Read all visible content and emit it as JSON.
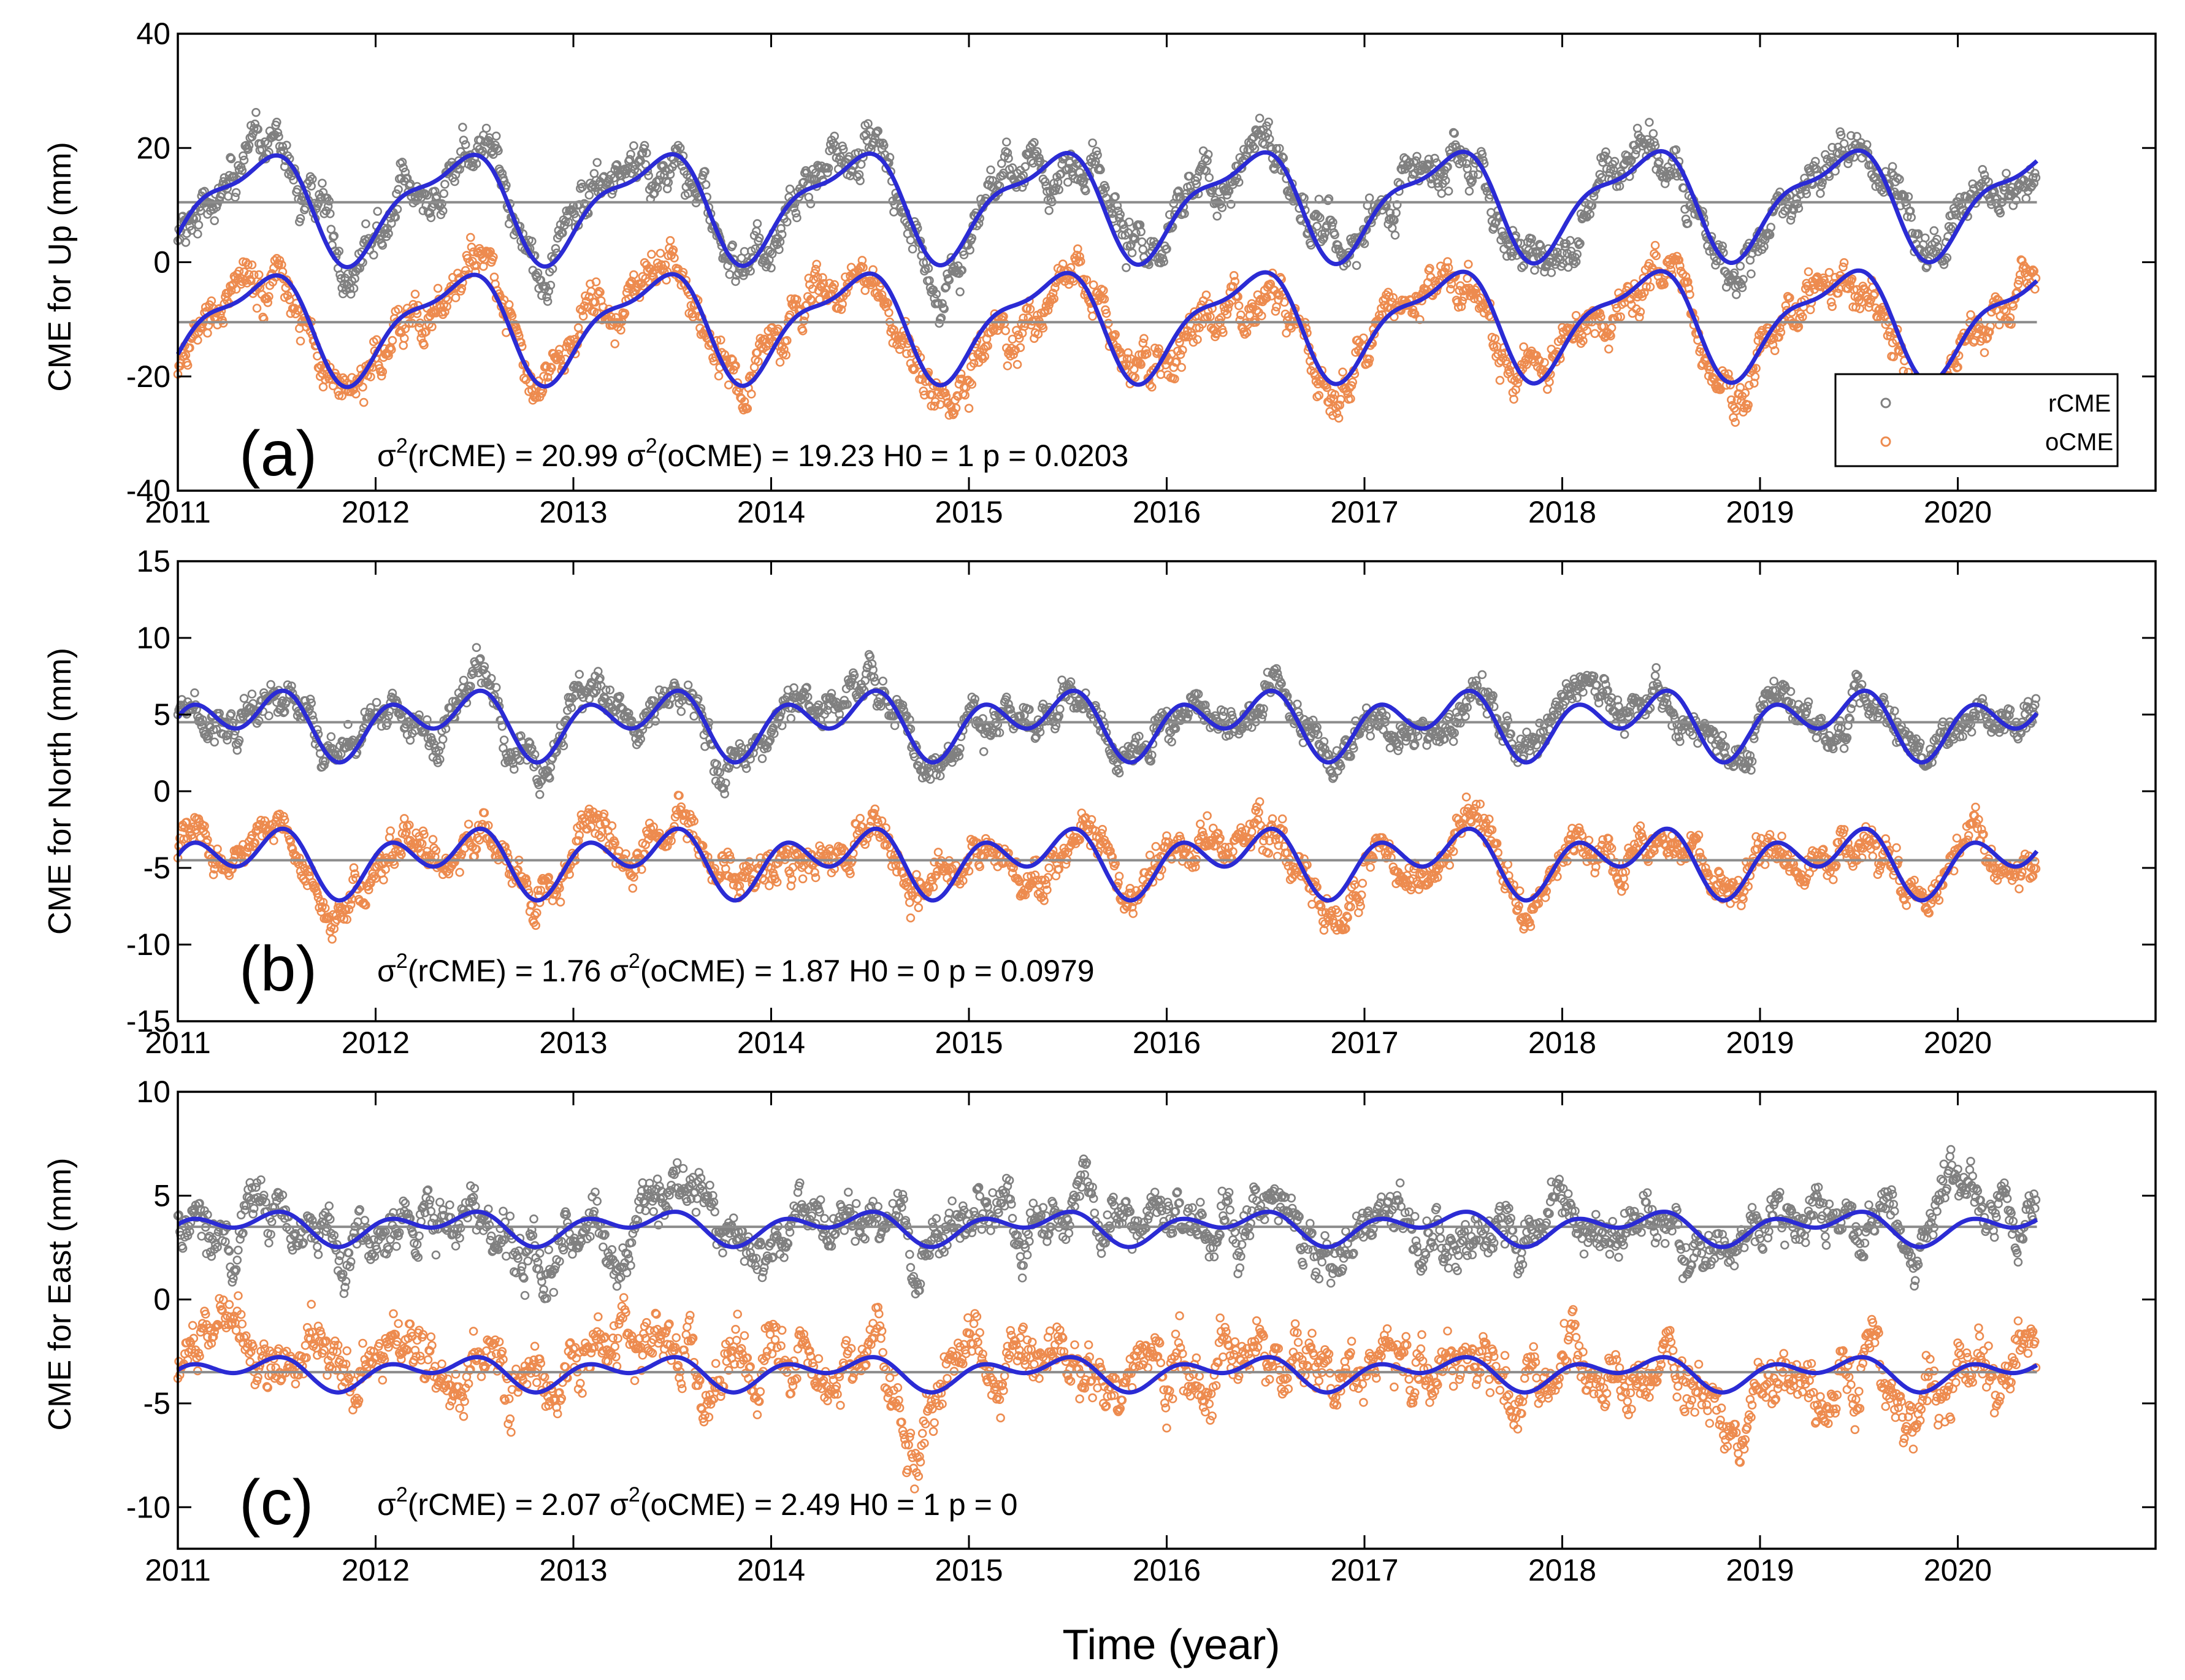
{
  "figure": {
    "xlabel": "Time (year)",
    "colors": {
      "rCME": "#808080",
      "oCME": "#ed8b4f",
      "fit": "#2b2bd4",
      "mean": "#8c8c8c",
      "axis": "#000000"
    },
    "legend": [
      {
        "label": "rCME",
        "color": "#808080"
      },
      {
        "label": "oCME",
        "color": "#ed8b4f"
      }
    ]
  },
  "chart_data": [
    {
      "type": "scatter",
      "panel": "(a)",
      "ylabel": "CME for Up (mm)",
      "xlim": [
        2011,
        2021
      ],
      "ylim": [
        -40,
        40
      ],
      "xticks": [
        2011,
        2012,
        2013,
        2014,
        2015,
        2016,
        2017,
        2018,
        2019,
        2020
      ],
      "xtick_labels": [
        "2011",
        "2012",
        "2013",
        "2014",
        "2015",
        "2016",
        "2017",
        "2018",
        "2019",
        "2020"
      ],
      "yticks": [
        -40,
        -20,
        0,
        20,
        40
      ],
      "ytick_labels": [
        "-40",
        "-20",
        "0",
        "20",
        "40"
      ],
      "x_end": 2020.4,
      "series": [
        {
          "name": "rCME",
          "mean": 10.5,
          "annual_amp": 8.5,
          "semi_amp": 3.0,
          "phase": 0.0,
          "noise": 4.0,
          "trend": 0.5
        },
        {
          "name": "oCME",
          "mean": -10.5,
          "annual_amp": 8.5,
          "semi_amp": 3.0,
          "phase": 0.0,
          "noise": 4.0,
          "trend": 0.5
        }
      ],
      "stats": {
        "var_r": "20.99",
        "var_o": "19.23",
        "h0": "1",
        "p": "0.0203"
      },
      "legend_position": "bottom-right"
    },
    {
      "type": "scatter",
      "panel": "(b)",
      "ylabel": "CME for North (mm)",
      "xlim": [
        2011,
        2021
      ],
      "ylim": [
        -15,
        15
      ],
      "xticks": [
        2011,
        2012,
        2013,
        2014,
        2015,
        2016,
        2017,
        2018,
        2019,
        2020
      ],
      "xtick_labels": [
        "2011",
        "2012",
        "2013",
        "2014",
        "2015",
        "2016",
        "2017",
        "2018",
        "2019",
        "2020"
      ],
      "yticks": [
        -15,
        -10,
        -5,
        0,
        5,
        10,
        15
      ],
      "ytick_labels": [
        "-15",
        "-10",
        "-5",
        "0",
        "5",
        "10",
        "15"
      ],
      "x_end": 2020.4,
      "series": [
        {
          "name": "rCME",
          "mean": 4.5,
          "annual_amp": 1.2,
          "semi_amp": 1.5,
          "phase": 0.6,
          "noise": 1.3,
          "trend": 0.0
        },
        {
          "name": "oCME",
          "mean": -4.5,
          "annual_amp": 1.2,
          "semi_amp": 1.5,
          "phase": 0.6,
          "noise": 1.4,
          "trend": 0.0
        }
      ],
      "stats": {
        "var_r": "1.76",
        "var_o": "1.87",
        "h0": "0",
        "p": "0.0979"
      }
    },
    {
      "type": "scatter",
      "panel": "(c)",
      "ylabel": "CME for East (mm)",
      "xlim": [
        2011,
        2021
      ],
      "ylim": [
        -12,
        10
      ],
      "xticks": [
        2011,
        2012,
        2013,
        2014,
        2015,
        2016,
        2017,
        2018,
        2019,
        2020
      ],
      "xtick_labels": [
        "2011",
        "2012",
        "2013",
        "2014",
        "2015",
        "2016",
        "2017",
        "2018",
        "2019",
        "2020"
      ],
      "yticks": [
        -10,
        -5,
        0,
        5,
        10
      ],
      "ytick_labels": [
        "-10",
        "-5",
        "0",
        "5",
        "10"
      ],
      "x_end": 2020.4,
      "series": [
        {
          "name": "rCME",
          "mean": 3.5,
          "annual_amp": 0.5,
          "semi_amp": 0.5,
          "phase": 0.9,
          "noise": 1.4,
          "trend": 0.0
        },
        {
          "name": "oCME",
          "mean": -3.5,
          "annual_amp": 0.5,
          "semi_amp": 0.5,
          "phase": 0.9,
          "noise": 1.6,
          "trend": 0.0
        }
      ],
      "stats": {
        "var_r": "2.07",
        "var_o": "2.49",
        "h0": "1",
        "p": "0"
      }
    }
  ]
}
